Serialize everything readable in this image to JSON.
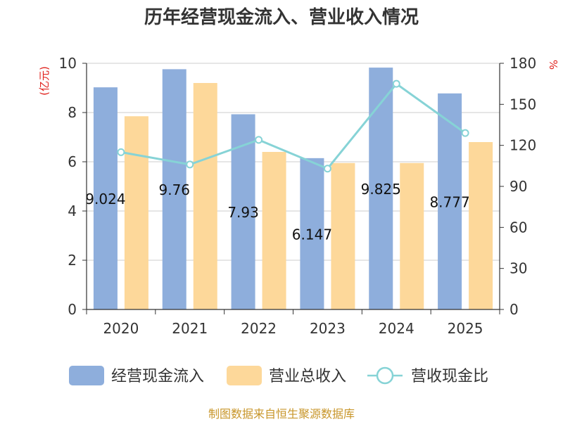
{
  "chart_data": {
    "type": "bar",
    "title": "历年经营现金流入、营业收入情况",
    "categories": [
      "2020",
      "2021",
      "2022",
      "2023",
      "2024",
      "2025"
    ],
    "y_left": {
      "unit": "(亿元)",
      "range": [
        0,
        10
      ],
      "ticks": [
        "0",
        "2",
        "4",
        "6",
        "8",
        "10"
      ]
    },
    "y_right": {
      "unit": "%",
      "range": [
        0,
        180
      ],
      "ticks": [
        "0",
        "30",
        "60",
        "90",
        "120",
        "150",
        "180"
      ]
    },
    "series": [
      {
        "name": "经营现金流入",
        "type": "bar",
        "axis": "left",
        "color": "#8eaedc",
        "values": [
          9.024,
          9.76,
          7.93,
          6.147,
          9.825,
          8.777
        ],
        "labels": [
          "9.024",
          "9.76",
          "7.93",
          "6.147",
          "9.825",
          "8.777"
        ]
      },
      {
        "name": "营业总收入",
        "type": "bar",
        "axis": "left",
        "color": "#fdd89a",
        "values": [
          7.85,
          9.2,
          6.4,
          5.95,
          5.95,
          6.8
        ]
      },
      {
        "name": "营收现金比",
        "type": "line",
        "axis": "right",
        "color": "#86d3d6",
        "values": [
          115,
          106,
          124,
          103,
          165,
          129
        ]
      }
    ],
    "grid": true,
    "legend_position": "bottom"
  },
  "footer": {
    "source": "制图数据来自恒生聚源数据库"
  }
}
